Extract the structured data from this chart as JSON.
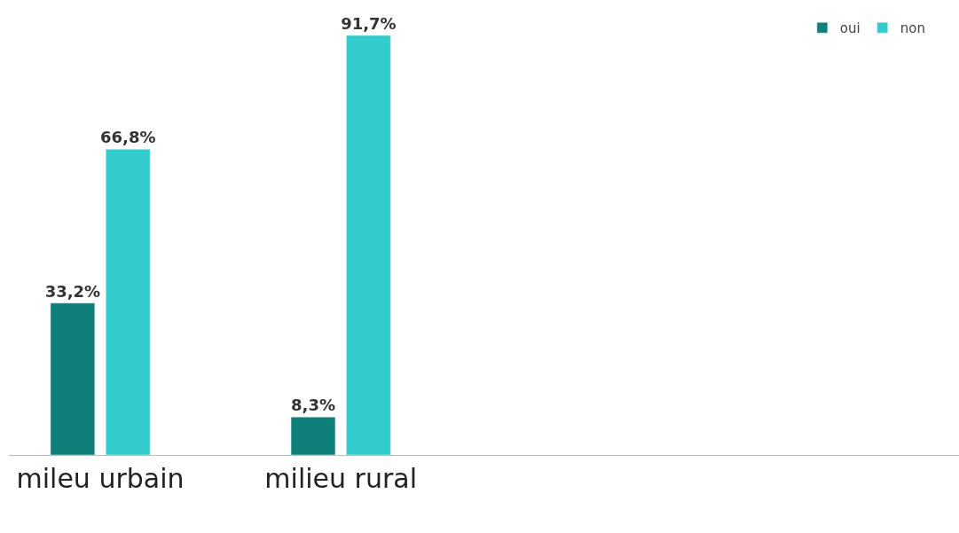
{
  "chart_data": {
    "type": "bar",
    "categories": [
      "mileu urbain",
      "milieu rural",
      null,
      null
    ],
    "series": [
      {
        "name": "oui",
        "color": "#0f7f7a",
        "values": [
          33.2,
          8.3,
          null,
          null
        ],
        "value_labels": [
          "33,2%",
          "8,3%",
          null,
          null
        ]
      },
      {
        "name": "non",
        "color": "#33cccc",
        "values": [
          66.8,
          91.7,
          null,
          null
        ],
        "value_labels": [
          "66,8%",
          "91,7%",
          null,
          null
        ]
      }
    ],
    "tick_labels": "x",
    "legend": "top right"
  }
}
